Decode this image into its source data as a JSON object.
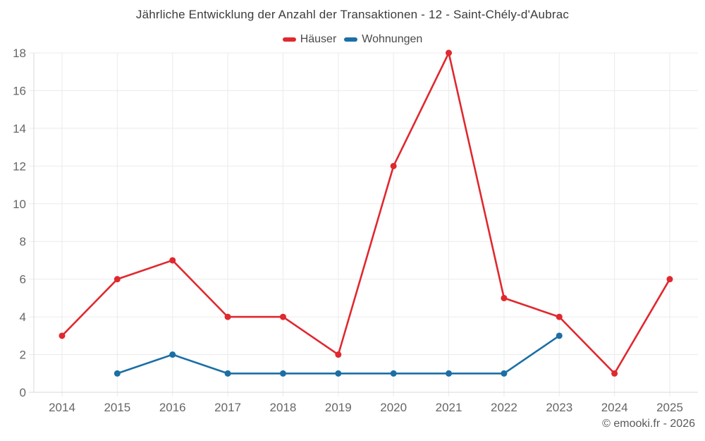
{
  "header": {
    "title": "Jährliche Entwicklung der Anzahl der Transaktionen - 12 - Saint-Chély-d'Aubrac"
  },
  "footer": {
    "copyright": "© emooki.fr - 2026"
  },
  "chart_data": {
    "type": "line",
    "title": "Jährliche Entwicklung der Anzahl der Transaktionen - 12 - Saint-Chély-d'Aubrac",
    "x": [
      2014,
      2015,
      2016,
      2017,
      2018,
      2019,
      2020,
      2021,
      2022,
      2023,
      2024,
      2025
    ],
    "series": [
      {
        "name": "Häuser",
        "color": "#e0282e",
        "values": [
          3,
          6,
          7,
          4,
          4,
          2,
          12,
          18,
          5,
          4,
          1,
          6
        ]
      },
      {
        "name": "Wohnungen",
        "color": "#1b6fa5",
        "values": [
          null,
          1,
          2,
          1,
          1,
          1,
          1,
          1,
          1,
          3,
          null,
          null
        ]
      }
    ],
    "xlabel": "",
    "ylabel": "",
    "ylim": [
      0,
      18
    ],
    "yticks": [
      0,
      2,
      4,
      6,
      8,
      10,
      12,
      14,
      16,
      18
    ],
    "grid": true,
    "legend_position": "top",
    "colors": {
      "grid": "#ebebeb",
      "axis": "#d8d8d8",
      "tick_label": "#666666",
      "title": "#3c3c3c"
    }
  }
}
